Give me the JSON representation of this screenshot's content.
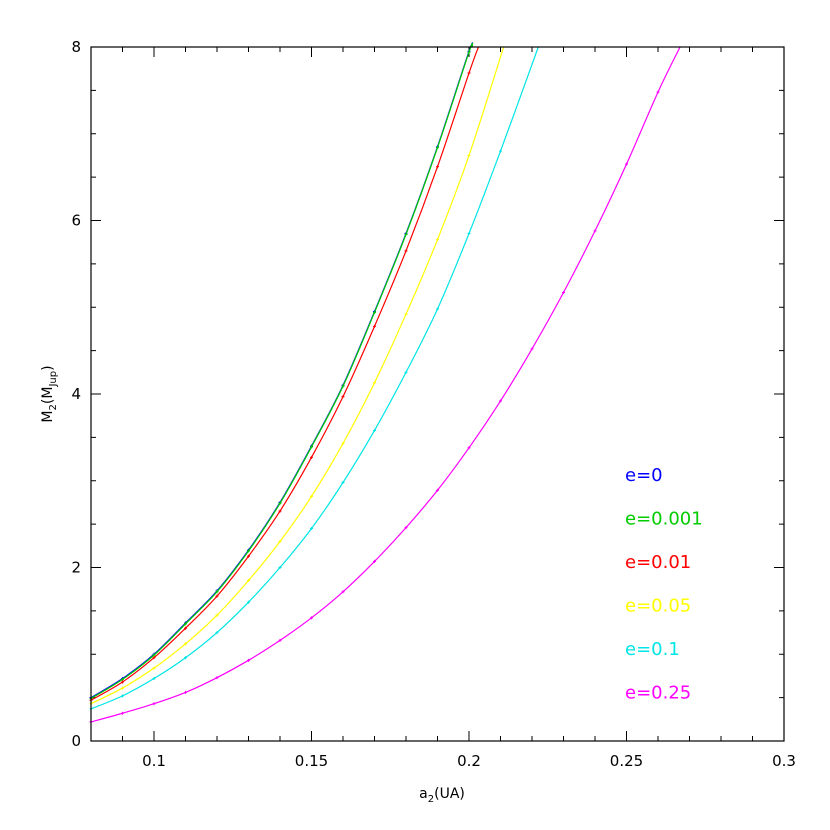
{
  "chart_data": {
    "type": "line",
    "title": "",
    "xlabel": {
      "main": "a",
      "sub": "2",
      "rest": "(UA)"
    },
    "ylabel": {
      "main": "M",
      "sub": "2",
      "mid": "(M",
      "sub2": "Jup",
      "end": ")"
    },
    "xlim": [
      0.08,
      0.3
    ],
    "ylim": [
      0,
      8
    ],
    "x_ticks": [
      0.1,
      0.15,
      0.2,
      0.25,
      0.3
    ],
    "x_tick_labels": [
      "0.1",
      "0.15",
      "0.2",
      "0.25",
      "0.3"
    ],
    "y_ticks": [
      0,
      2,
      4,
      6,
      8
    ],
    "y_tick_labels": [
      "0",
      "2",
      "4",
      "6",
      "8"
    ],
    "x_minor_step": 0.01,
    "y_minor_step": 0.5,
    "grid": false,
    "legend_position": "bottom-right",
    "series": [
      {
        "name": "e=0",
        "color": "#0000ff",
        "x": [
          0.08,
          0.09,
          0.1,
          0.11,
          0.12,
          0.13,
          0.14,
          0.15,
          0.16,
          0.17,
          0.18,
          0.19,
          0.2,
          0.201
        ],
        "y": [
          0.5,
          0.72,
          1.0,
          1.36,
          1.73,
          2.2,
          2.75,
          3.4,
          4.1,
          4.95,
          5.85,
          6.85,
          7.95,
          8.0
        ]
      },
      {
        "name": "e=0.001",
        "color": "#00cc00",
        "x": [
          0.08,
          0.09,
          0.1,
          0.11,
          0.12,
          0.13,
          0.14,
          0.15,
          0.16,
          0.17,
          0.18,
          0.19,
          0.2,
          0.201
        ],
        "y": [
          0.49,
          0.71,
          0.99,
          1.35,
          1.72,
          2.19,
          2.74,
          3.39,
          4.09,
          4.94,
          5.84,
          6.84,
          7.94,
          8.0
        ]
      },
      {
        "name": "e=0.01",
        "color": "#ff0000",
        "x": [
          0.08,
          0.09,
          0.1,
          0.11,
          0.12,
          0.13,
          0.14,
          0.15,
          0.16,
          0.17,
          0.18,
          0.19,
          0.2,
          0.203
        ],
        "y": [
          0.47,
          0.68,
          0.96,
          1.3,
          1.67,
          2.13,
          2.65,
          3.27,
          3.97,
          4.78,
          5.65,
          6.62,
          7.7,
          8.0
        ]
      },
      {
        "name": "e=0.05",
        "color": "#ffff00",
        "x": [
          0.08,
          0.09,
          0.1,
          0.11,
          0.12,
          0.13,
          0.14,
          0.15,
          0.16,
          0.17,
          0.18,
          0.19,
          0.2,
          0.211
        ],
        "y": [
          0.43,
          0.61,
          0.84,
          1.12,
          1.45,
          1.85,
          2.3,
          2.82,
          3.43,
          4.13,
          4.92,
          5.78,
          6.75,
          8.0
        ]
      },
      {
        "name": "e=0.1",
        "color": "#00e5e5",
        "x": [
          0.08,
          0.09,
          0.1,
          0.11,
          0.12,
          0.13,
          0.14,
          0.15,
          0.16,
          0.17,
          0.18,
          0.19,
          0.2,
          0.21,
          0.222
        ],
        "y": [
          0.37,
          0.52,
          0.72,
          0.96,
          1.25,
          1.6,
          2.0,
          2.45,
          2.98,
          3.58,
          4.25,
          4.98,
          5.85,
          6.8,
          8.0
        ]
      },
      {
        "name": "e=0.25",
        "color": "#ff00ff",
        "x": [
          0.08,
          0.09,
          0.1,
          0.11,
          0.12,
          0.13,
          0.14,
          0.15,
          0.16,
          0.17,
          0.18,
          0.19,
          0.2,
          0.21,
          0.22,
          0.23,
          0.24,
          0.25,
          0.26,
          0.267
        ],
        "y": [
          0.22,
          0.32,
          0.43,
          0.56,
          0.73,
          0.93,
          1.16,
          1.42,
          1.72,
          2.07,
          2.46,
          2.89,
          3.38,
          3.92,
          4.52,
          5.17,
          5.88,
          6.65,
          7.48,
          8.0
        ]
      }
    ]
  }
}
